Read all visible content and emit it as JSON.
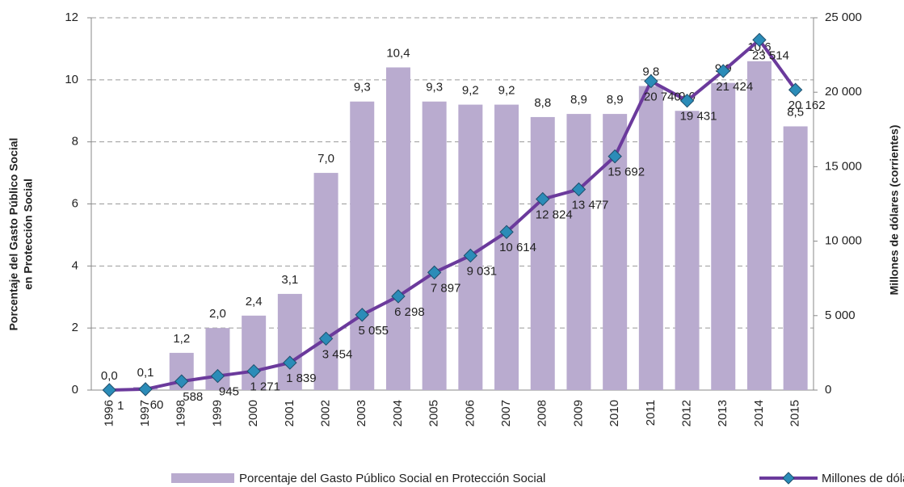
{
  "chart_data": {
    "type": "bar_line",
    "categories": [
      "1996",
      "1997",
      "1998",
      "1999",
      "2000",
      "2001",
      "2002",
      "2003",
      "2004",
      "2005",
      "2006",
      "2007",
      "2008",
      "2009",
      "2010",
      "2011",
      "2012",
      "2013",
      "2014",
      "2015"
    ],
    "series": [
      {
        "name": "Porcentaje del Gasto Público Social en Protección Social",
        "type": "bar",
        "color": "#b9abcf",
        "values": [
          0.0,
          0.1,
          1.2,
          2.0,
          2.4,
          3.1,
          7.0,
          9.3,
          10.4,
          9.3,
          9.2,
          9.2,
          8.8,
          8.9,
          8.9,
          9.8,
          9.0,
          9.9,
          10.6,
          8.5
        ],
        "value_labels": [
          "0,0",
          "0,1",
          "1,2",
          "2,0",
          "2,4",
          "3,1",
          "7,0",
          "9,3",
          "10,4",
          "9,3",
          "9,2",
          "9,2",
          "8,8",
          "8,9",
          "8,9",
          "9,8",
          "9,0",
          "9,9",
          "10,6",
          "8,5"
        ]
      },
      {
        "name": "Millones de dólares",
        "type": "line",
        "axis": "y2",
        "color": "#6b3a9c",
        "marker_color": "#2b8cb8",
        "values": [
          1,
          60,
          588,
          945,
          1271,
          1839,
          3454,
          5055,
          6298,
          7897,
          9031,
          10614,
          12824,
          13477,
          15692,
          20740,
          19431,
          21424,
          23514,
          20162
        ],
        "value_labels": [
          "1",
          "60",
          "588",
          "945",
          "1 271",
          "1 839",
          "3 454",
          "5 055",
          "6 298",
          "7 897",
          "9 031",
          "10 614",
          "12 824",
          "13 477",
          "15 692",
          "20 740",
          "19 431",
          "21 424",
          "23 514",
          "20 162"
        ]
      }
    ],
    "ylabel": [
      "Porcentaje del Gasto Público Social",
      "en Protección Social"
    ],
    "y2label": "Millones de dólares (corrientes)",
    "ylim": [
      0,
      12
    ],
    "yticks": [
      0,
      2,
      4,
      6,
      8,
      10,
      12
    ],
    "y2lim": [
      0,
      25000
    ],
    "y2ticks": [
      0,
      {
        "value": 5000,
        "label": "5 000"
      },
      {
        "value": 10000,
        "label": "10 000"
      },
      {
        "value": 15000,
        "label": "15 000"
      },
      {
        "value": 20000,
        "label": "20 000"
      },
      {
        "value": 25000,
        "label": "25 000"
      }
    ],
    "grid": true,
    "legend": "bottom"
  }
}
